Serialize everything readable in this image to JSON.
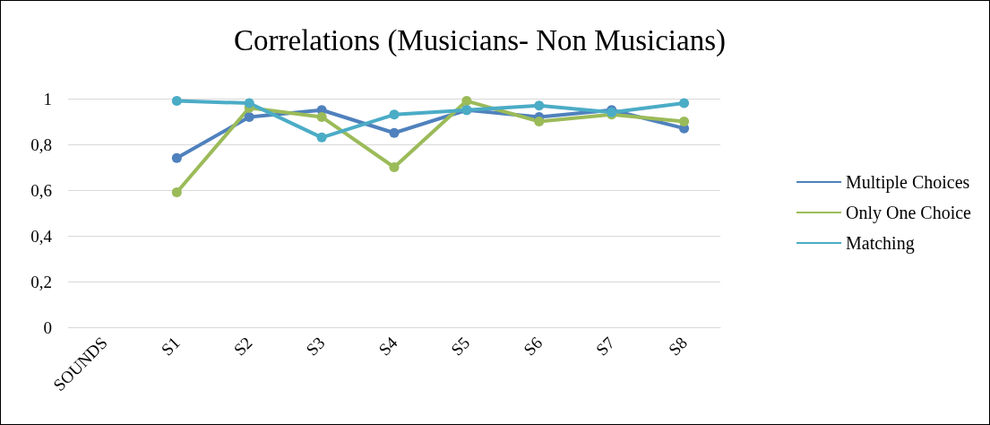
{
  "chart_data": {
    "type": "line",
    "title": "Correlations (Musicians- Non Musicians)",
    "categories": [
      "SOUNDS",
      "S1",
      "S2",
      "S3",
      "S4",
      "S5",
      "S6",
      "S7",
      "S8"
    ],
    "series": [
      {
        "name": "Multiple Choices",
        "color": "#4f81bd",
        "values": [
          null,
          0.74,
          0.92,
          0.95,
          0.85,
          0.95,
          0.92,
          0.95,
          0.87
        ]
      },
      {
        "name": "Only One Choice",
        "color": "#9bbb59",
        "values": [
          null,
          0.59,
          0.96,
          0.92,
          0.7,
          0.99,
          0.9,
          0.93,
          0.9
        ]
      },
      {
        "name": "Matching",
        "color": "#4bacc6",
        "values": [
          null,
          0.99,
          0.98,
          0.83,
          0.93,
          0.95,
          0.97,
          0.94,
          0.98
        ]
      }
    ],
    "ylim": [
      0,
      1
    ],
    "yticks": [
      {
        "value": 0,
        "label": "0"
      },
      {
        "value": 0.2,
        "label": "0,2"
      },
      {
        "value": 0.4,
        "label": "0,4"
      },
      {
        "value": 0.6,
        "label": "0,6"
      },
      {
        "value": 0.8,
        "label": "0,8"
      },
      {
        "value": 1,
        "label": "1"
      }
    ],
    "grid": "y",
    "legend": "right",
    "marker": "circle",
    "line_style": "solid"
  }
}
